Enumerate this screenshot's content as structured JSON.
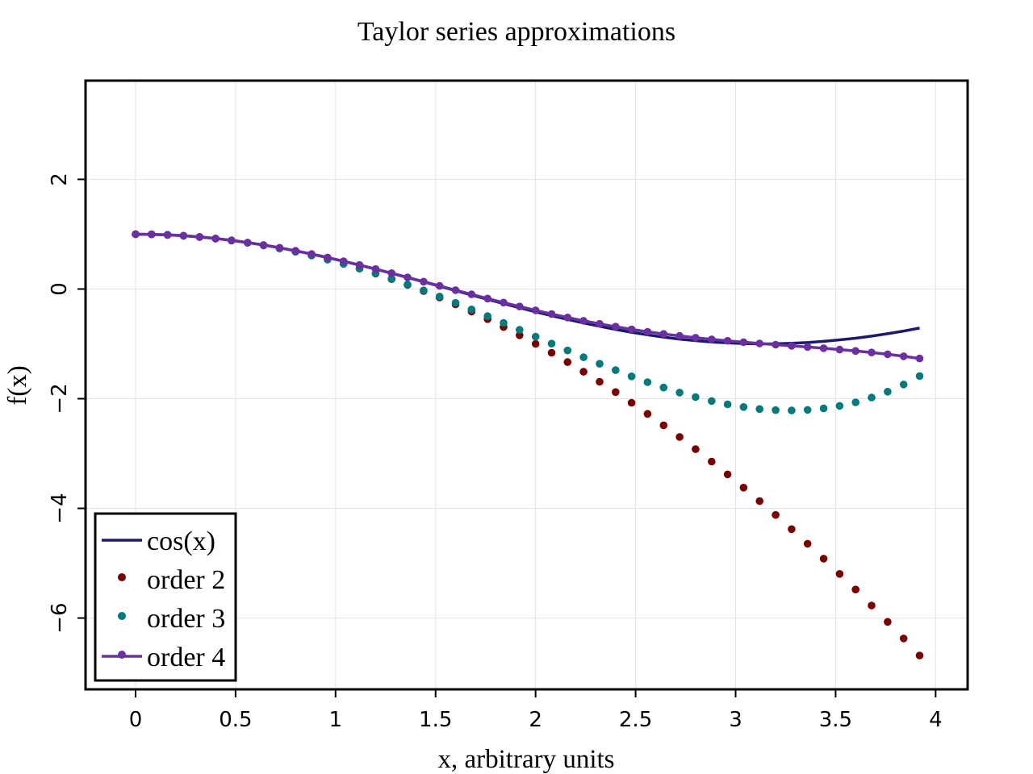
{
  "chart_data": {
    "type": "line",
    "title": "Taylor series approximations",
    "xlabel": "x, arbitrary units",
    "ylabel": "f(x)",
    "xlim": [
      -0.25,
      4.16
    ],
    "ylim": [
      -7.3,
      3.8
    ],
    "xticks": [
      0,
      0.5,
      1,
      1.5,
      2,
      2.5,
      3,
      3.5,
      4
    ],
    "xtick_labels": [
      "0",
      "0.5",
      "1",
      "1.5",
      "2",
      "2.5",
      "3",
      "3.5",
      "4"
    ],
    "yticks": [
      -6,
      -4,
      -2,
      0,
      2
    ],
    "ytick_labels": [
      "−6",
      "−4",
      "−2",
      "0",
      "2"
    ],
    "grid": true,
    "legend_position": "bottom-left",
    "x": [
      0,
      0.08,
      0.16,
      0.24,
      0.32,
      0.4,
      0.48,
      0.56,
      0.64,
      0.72,
      0.8,
      0.88,
      0.96,
      1.04,
      1.12,
      1.2,
      1.28,
      1.36,
      1.44,
      1.52,
      1.6,
      1.68,
      1.76,
      1.84,
      1.92,
      2.0,
      2.08,
      2.16,
      2.24,
      2.32,
      2.4,
      2.48,
      2.56,
      2.64,
      2.72,
      2.8,
      2.88,
      2.96,
      3.04,
      3.12,
      3.2,
      3.28,
      3.36,
      3.44,
      3.52,
      3.6,
      3.68,
      3.76,
      3.84,
      3.92
    ],
    "series": [
      {
        "name": "cos(x)",
        "style": "line",
        "color": "#1a1a6e",
        "values": [
          1.0,
          0.997,
          0.987,
          0.971,
          0.949,
          0.921,
          0.887,
          0.847,
          0.802,
          0.752,
          0.697,
          0.637,
          0.573,
          0.506,
          0.436,
          0.362,
          0.287,
          0.209,
          0.13,
          0.051,
          -0.029,
          -0.109,
          -0.188,
          -0.266,
          -0.342,
          -0.416,
          -0.487,
          -0.555,
          -0.619,
          -0.68,
          -0.737,
          -0.789,
          -0.835,
          -0.877,
          -0.913,
          -0.942,
          -0.966,
          -0.983,
          -0.995,
          -1.0,
          -0.998,
          -0.99,
          -0.976,
          -0.955,
          -0.927,
          -0.897,
          -0.859,
          -0.815,
          -0.766,
          -0.712
        ]
      },
      {
        "name": "order 2",
        "style": "dots",
        "color": "#7a0000",
        "values": [
          1.0,
          0.997,
          0.987,
          0.971,
          0.949,
          0.92,
          0.885,
          0.843,
          0.795,
          0.741,
          0.68,
          0.613,
          0.539,
          0.459,
          0.373,
          0.28,
          0.181,
          0.075,
          -0.037,
          -0.155,
          -0.28,
          -0.411,
          -0.549,
          -0.693,
          -0.843,
          -1.0,
          -1.163,
          -1.333,
          -1.509,
          -1.691,
          -1.88,
          -2.075,
          -2.277,
          -2.485,
          -2.699,
          -2.92,
          -3.147,
          -3.381,
          -3.621,
          -3.867,
          -4.12,
          -4.379,
          -4.645,
          -4.917,
          -5.195,
          -5.48,
          -5.771,
          -6.069,
          -6.373,
          -6.683
        ]
      },
      {
        "name": "order 3",
        "style": "dots",
        "color": "#007a7a",
        "values": [
          1.0,
          0.997,
          0.987,
          0.971,
          0.949,
          0.92,
          0.885,
          0.843,
          0.795,
          0.741,
          0.68,
          0.613,
          0.539,
          0.46,
          0.375,
          0.283,
          0.186,
          0.082,
          -0.025,
          -0.137,
          -0.253,
          -0.372,
          -0.494,
          -0.618,
          -0.744,
          -0.87,
          -0.996,
          -1.121,
          -1.244,
          -1.364,
          -1.48,
          -1.592,
          -1.698,
          -1.797,
          -1.888,
          -1.97,
          -2.042,
          -2.103,
          -2.152,
          -2.188,
          -2.209,
          -2.215,
          -2.205,
          -2.177,
          -2.131,
          -2.066,
          -1.98,
          -1.872,
          -1.741,
          -1.587
        ]
      },
      {
        "name": "order 4",
        "style": "line-dots",
        "color": "#6a2fa0",
        "values": [
          1.0,
          0.997,
          0.987,
          0.971,
          0.949,
          0.921,
          0.887,
          0.847,
          0.802,
          0.752,
          0.697,
          0.637,
          0.574,
          0.507,
          0.437,
          0.364,
          0.289,
          0.212,
          0.135,
          0.057,
          -0.021,
          -0.098,
          -0.174,
          -0.248,
          -0.32,
          -0.389,
          -0.456,
          -0.519,
          -0.579,
          -0.635,
          -0.687,
          -0.735,
          -0.779,
          -0.819,
          -0.855,
          -0.888,
          -0.918,
          -0.945,
          -0.97,
          -0.993,
          -1.015,
          -1.037,
          -1.058,
          -1.08,
          -1.104,
          -1.13,
          -1.158,
          -1.19,
          -1.226,
          -1.266
        ]
      }
    ]
  }
}
